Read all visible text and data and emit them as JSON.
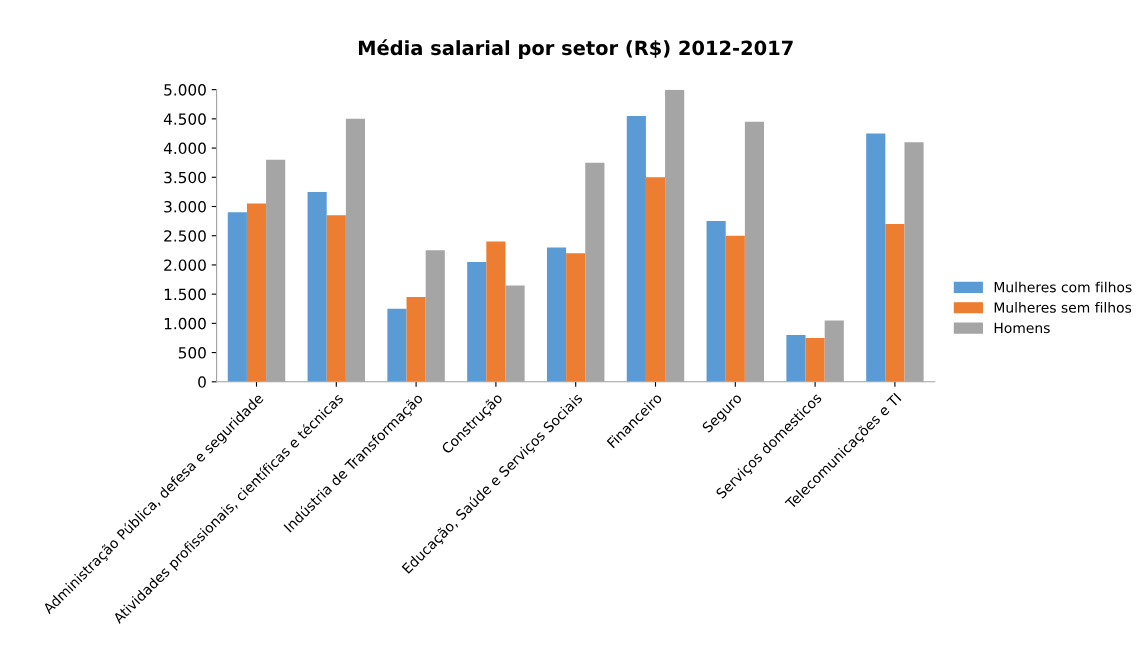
{
  "chart_data": {
    "type": "bar",
    "title": "Média salarial por setor (R$) 2012-2017",
    "categories": [
      "Administração Pública, defesa e seguridade",
      "Atividades profissionais, científicas e técnicas",
      "Indústria de Transformação",
      "Construção",
      "Educação, Saúde e Serviços Sociais",
      "Financeiro",
      "Seguro",
      "Serviços domesticos",
      "Telecomunicações e TI"
    ],
    "series": [
      {
        "name": "Mulheres com filhos",
        "color": "#5b9bd5",
        "values": [
          2900,
          3250,
          1250,
          2050,
          2300,
          4550,
          2750,
          800,
          4250
        ]
      },
      {
        "name": "Mulheres sem filhos",
        "color": "#ed7d31",
        "values": [
          3050,
          2850,
          1450,
          2400,
          2200,
          3500,
          2500,
          750,
          2700
        ]
      },
      {
        "name": "Homens",
        "color": "#a5a5a5",
        "values": [
          3800,
          4500,
          2250,
          1650,
          3750,
          5000,
          4450,
          1050,
          4100
        ]
      }
    ],
    "ylim": [
      0,
      5000
    ],
    "yticks": [
      {
        "value": 0,
        "label": "0"
      },
      {
        "value": 500,
        "label": "500"
      },
      {
        "value": 1000,
        "label": "1.000"
      },
      {
        "value": 1500,
        "label": "1.500"
      },
      {
        "value": 2000,
        "label": "2.000"
      },
      {
        "value": 2500,
        "label": "2.500"
      },
      {
        "value": 3000,
        "label": "3.000"
      },
      {
        "value": 3500,
        "label": "3.500"
      },
      {
        "value": 4000,
        "label": "4.000"
      },
      {
        "value": 4500,
        "label": "4.500"
      },
      {
        "value": 5000,
        "label": "5.000"
      }
    ],
    "grid": false,
    "legend": "right"
  }
}
